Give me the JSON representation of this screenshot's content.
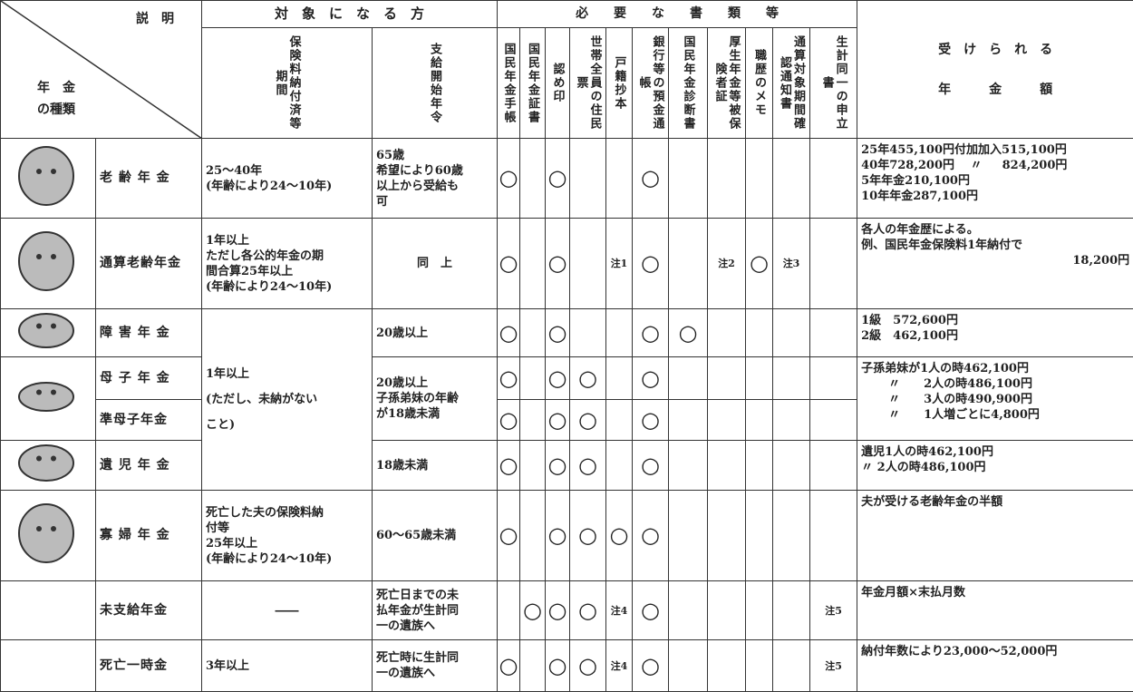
{
  "header": {
    "corner_top": "説　明",
    "corner_left": [
      "年　金",
      "の種類"
    ],
    "target_title": "対　象　に　な　る　方",
    "docs_title": "必　　要　　な　　書　　類　　等",
    "amount_title": [
      "受　け　ら　れ　る",
      "年　　　金　　　額"
    ],
    "target_cols": [
      "保険料納付済等期間",
      "支給開始年令"
    ],
    "doc_cols": [
      "国民年金手帳",
      "国民年金証書",
      "認め印",
      "世帯全員の住民票",
      "戸籍抄本",
      "銀行等の預金通帳",
      "国民年金診断書",
      "厚生年金等被保険者証",
      "職歴のメモ",
      "通算対象期間確認通知書",
      "生計同一の申立書"
    ]
  },
  "rows": [
    {
      "type": "老 齢 年 金",
      "period": [
        "25～40年",
        "(年齢により24～10年)"
      ],
      "age": [
        "65歳",
        "希望により60歳",
        "以上から受給も",
        "可"
      ],
      "docs": [
        "○",
        "",
        "○",
        "",
        "",
        "○",
        "",
        "",
        "",
        "",
        ""
      ],
      "amount": [
        "25年455,100円付加加入515,100円",
        "40年728,200円　 〃 　 824,200円",
        "5年年金210,100円",
        "10年年金287,100円"
      ]
    },
    {
      "type": "通算老齢年金",
      "period": [
        "1年以上",
        "ただし各公的年金の期",
        "間合算25年以上",
        "(年齢により24～10年)"
      ],
      "age": [
        "同　上"
      ],
      "docs": [
        "○",
        "",
        "○",
        "",
        "注1",
        "○",
        "",
        "注2",
        "○",
        "注3",
        ""
      ],
      "amount": [
        "各人の年金歴による。",
        "例、国民年金保険料1年納付で",
        "18,200円"
      ]
    },
    {
      "type": "障 害 年 金",
      "period": [
        "1年以上",
        "(ただし、未納がない",
        "こと)"
      ],
      "age": [
        "20歳以上"
      ],
      "docs": [
        "○",
        "",
        "○",
        "",
        "",
        "○",
        "○",
        "",
        "",
        "",
        ""
      ],
      "amount": [
        "1級　572,600円",
        "2級　462,100円"
      ]
    },
    {
      "type": "母 子 年 金",
      "age": [
        "20歳以上",
        "子孫弟妹の年齢",
        "が18歳未満"
      ],
      "docs": [
        "○",
        "",
        "○",
        "○",
        "",
        "○",
        "",
        "",
        "",
        "",
        ""
      ],
      "amount": [
        "子孫弟妹が1人の時462,100円",
        "〃　　2人の時486,100円",
        "〃　　3人の時490,900円",
        "〃　　1人増ごとに4,800円"
      ]
    },
    {
      "type": "準母子年金",
      "docs": [
        "○",
        "",
        "○",
        "○",
        "",
        "○",
        "",
        "",
        "",
        "",
        ""
      ]
    },
    {
      "type": "遺 児 年 金",
      "age": [
        "18歳未満"
      ],
      "docs": [
        "○",
        "",
        "○",
        "○",
        "",
        "○",
        "",
        "",
        "",
        "",
        ""
      ],
      "amount": [
        "遺児1人の時462,100円",
        "〃 2人の時486,100円"
      ]
    },
    {
      "type": "寡 婦 年 金",
      "period": [
        "死亡した夫の保険料納",
        "付等",
        "25年以上",
        "(年齢により24～10年)"
      ],
      "age": [
        "60～65歳未満"
      ],
      "docs": [
        "○",
        "",
        "○",
        "○",
        "○",
        "○",
        "",
        "",
        "",
        "",
        ""
      ],
      "amount": [
        "夫が受ける老齢年金の半額"
      ]
    },
    {
      "type": "未支給年金",
      "period": [
        "――"
      ],
      "age": [
        "死亡日までの未",
        "払年金が生計同",
        "一の遺族へ"
      ],
      "docs": [
        "",
        "○",
        "○",
        "○",
        "注4",
        "○",
        "",
        "",
        "",
        "",
        "注5"
      ],
      "amount": [
        "年金月額×末払月数"
      ]
    },
    {
      "type": "死亡一時金",
      "period": [
        "3年以上"
      ],
      "age": [
        "死亡時に生計同",
        "一の遺族へ"
      ],
      "docs": [
        "○",
        "",
        "○",
        "○",
        "注4",
        "○",
        "",
        "",
        "",
        "",
        "注5"
      ],
      "amount": [
        "納付年数により23,000～52,000円"
      ]
    }
  ]
}
